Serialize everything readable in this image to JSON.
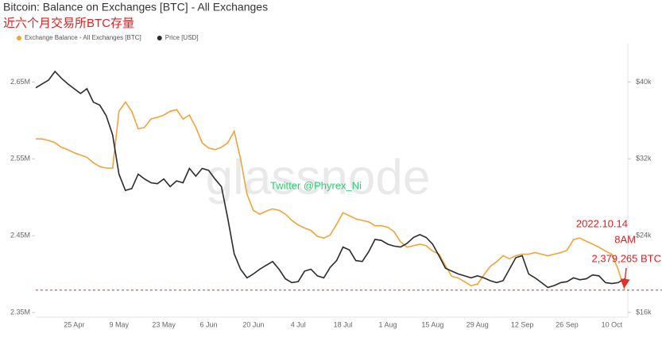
{
  "chart_data": {
    "type": "line",
    "title": "Bitcoin: Balance on Exchanges [BTC] - All Exchanges",
    "subtitle": "近六个月交易所BTC存量",
    "watermark": "glassnode",
    "credit": "Twitter @Phyrex_Ni",
    "annotations": [
      "2022.10.14",
      "8AM",
      "2,379,265 BTC"
    ],
    "x": [
      null,
      null,
      null,
      null,
      null,
      null,
      "25 Apr",
      null,
      null,
      null,
      null,
      null,
      null,
      "9 May",
      null,
      null,
      null,
      null,
      null,
      null,
      "23 May",
      null,
      null,
      null,
      null,
      null,
      null,
      "6 Jun",
      null,
      null,
      null,
      null,
      null,
      null,
      "20 Jun",
      null,
      null,
      null,
      null,
      null,
      null,
      "4 Jul",
      null,
      null,
      null,
      null,
      null,
      null,
      "18 Jul",
      null,
      null,
      null,
      null,
      null,
      null,
      "1 Aug",
      null,
      null,
      null,
      null,
      null,
      null,
      "15 Aug",
      null,
      null,
      null,
      null,
      null,
      null,
      "29 Aug",
      null,
      null,
      null,
      null,
      null,
      null,
      "12 Sep",
      null,
      null,
      null,
      null,
      null,
      null,
      "26 Sep",
      null,
      null,
      null,
      null,
      null,
      null,
      "10 Oct",
      null,
      null
    ],
    "series": [
      {
        "name": "Exchange Balance - All Exchanges [BTC]",
        "color": "#f2a33a",
        "axis": "y",
        "values": [
          2576000,
          2576000,
          2574000,
          2571000,
          2565000,
          2562000,
          2558000,
          2555000,
          2552000,
          2545000,
          2540000,
          2538000,
          2538000,
          2612000,
          2624000,
          2612000,
          2589000,
          2591000,
          2602000,
          2604000,
          2607000,
          2612000,
          2614000,
          2602000,
          2607000,
          2591000,
          2571000,
          2564000,
          2562000,
          2565000,
          2571000,
          2586000,
          2550000,
          2504000,
          2483000,
          2478000,
          2482000,
          2485000,
          2483000,
          2478000,
          2470000,
          2464000,
          2460000,
          2457000,
          2449000,
          2447000,
          2451000,
          2465000,
          2480000,
          2476000,
          2472000,
          2470000,
          2468000,
          2463000,
          2463000,
          2461000,
          2455000,
          2442000,
          2435000,
          2437000,
          2439000,
          2437000,
          2430000,
          2426000,
          2411000,
          2397000,
          2395000,
          2390000,
          2385000,
          2387000,
          2399000,
          2410000,
          2416000,
          2424000,
          2420000,
          2424000,
          2426000,
          2426000,
          2428000,
          2426000,
          2424000,
          2426000,
          2428000,
          2431000,
          2445000,
          2447000,
          2443000,
          2439000,
          2435000,
          2430000,
          2426000,
          2406000,
          2379265
        ]
      },
      {
        "name": "Price [USD]",
        "color": "#2b2b2b",
        "axis": "y2",
        "values": [
          39400,
          39800,
          40200,
          41100,
          40400,
          39800,
          39300,
          38800,
          39300,
          37900,
          37600,
          36500,
          34500,
          30400,
          28700,
          28900,
          30400,
          29900,
          29500,
          29400,
          29900,
          29100,
          29700,
          29500,
          31000,
          30200,
          31000,
          30800,
          29900,
          29100,
          25800,
          22100,
          20500,
          19600,
          20000,
          20500,
          20900,
          21300,
          20500,
          19500,
          19100,
          19200,
          20300,
          20500,
          19800,
          19600,
          20700,
          21400,
          22800,
          22500,
          21400,
          21300,
          22300,
          23600,
          23500,
          23100,
          22900,
          22800,
          23200,
          23800,
          24100,
          23800,
          23100,
          21900,
          20600,
          20300,
          20000,
          19800,
          19600,
          19800,
          19600,
          19300,
          19100,
          19300,
          20500,
          21700,
          21900,
          20000,
          19600,
          19100,
          18600,
          18800,
          19100,
          19200,
          19600,
          19400,
          19500,
          19900,
          19800,
          19100,
          19000,
          19100,
          19500
        ]
      }
    ],
    "ylim": [
      2344000,
      2700000
    ],
    "yticks": [
      {
        "value": 2350000,
        "label": "2.35M"
      },
      {
        "value": 2450000,
        "label": "2.45M"
      },
      {
        "value": 2550000,
        "label": "2.55M"
      },
      {
        "value": 2650000,
        "label": "2.65M"
      }
    ],
    "y2lim": [
      15500,
      44000
    ],
    "y2ticks": [
      {
        "value": 16000,
        "label": "$16k"
      },
      {
        "value": 24000,
        "label": "$24k"
      },
      {
        "value": 32000,
        "label": "$32k"
      },
      {
        "value": 40000,
        "label": "$40k"
      }
    ],
    "grid": false,
    "legend": "top"
  }
}
